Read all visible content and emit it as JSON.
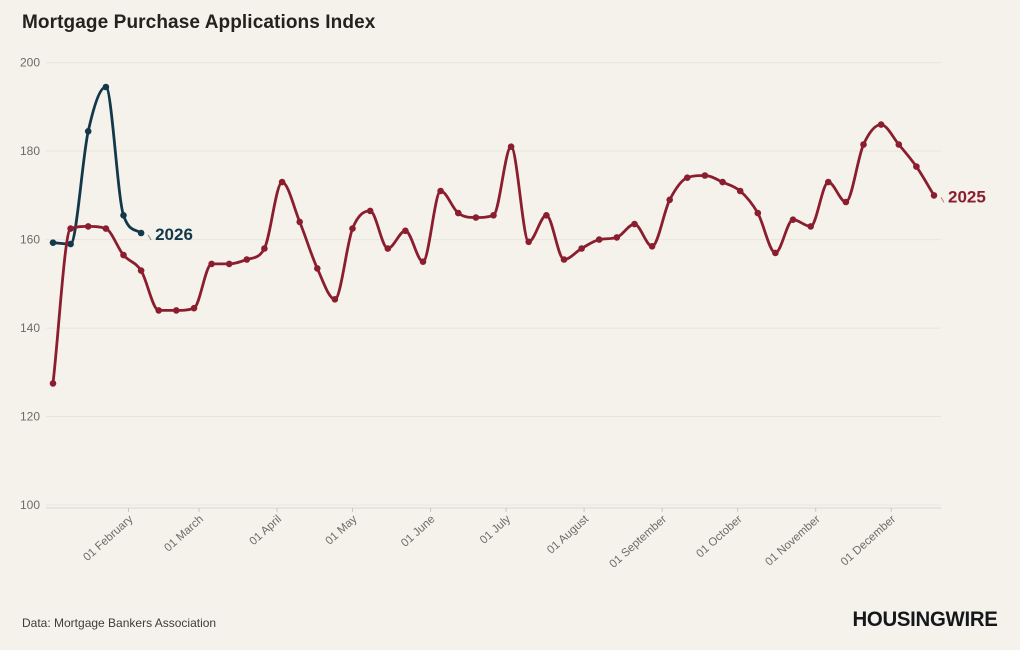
{
  "title": "Mortgage Purchase Applications Index",
  "footer": {
    "source": "Data: Mortgage Bankers Association",
    "brand": "HOUSINGWIRE"
  },
  "colors": {
    "background": "#f5f2ec",
    "series_2025": "#8b1e2e",
    "series_2026": "#13384a",
    "gridline": "#e8e5df",
    "axis_text": "#6e6b66"
  },
  "chart_data": {
    "type": "line",
    "title": "Mortgage Purchase Applications Index",
    "xlabel": "",
    "ylabel": "",
    "ylim": [
      100,
      200
    ],
    "grid": "horizontal",
    "legend_position": "inline-end-of-line-labels",
    "y_axis": {
      "ticks": [
        100,
        120,
        140,
        160,
        180,
        200
      ]
    },
    "x_axis": {
      "tick_labels": [
        "01 February",
        "01 March",
        "01 April",
        "01 May",
        "01 June",
        "01 July",
        "01 August",
        "01 September",
        "01 October",
        "01 November",
        "01 December"
      ],
      "tick_day_of_year": [
        32,
        60,
        91,
        121,
        152,
        182,
        213,
        244,
        274,
        305,
        335
      ]
    },
    "series": [
      {
        "name": "2025",
        "color": "#8b1e2e",
        "start_day_of_year": 2,
        "step_days": 7,
        "values": [
          127.5,
          162.5,
          163,
          162.5,
          156.5,
          153,
          144,
          144,
          144.5,
          154.5,
          154.5,
          155.5,
          158,
          173,
          164,
          153.5,
          146.5,
          162.5,
          166.5,
          158,
          162,
          155,
          171,
          166,
          165,
          165.5,
          181,
          159.5,
          165.5,
          155.5,
          158,
          160,
          160.5,
          163.5,
          158.5,
          169,
          174,
          174.5,
          173,
          171,
          166,
          157,
          164.5,
          163,
          173,
          168.5,
          181.5,
          186,
          181.5,
          176.5,
          170
        ]
      },
      {
        "name": "2026",
        "color": "#13384a",
        "start_day_of_year": 2,
        "step_days": 7,
        "values": [
          159.3,
          159,
          184.5,
          194.5,
          165.5,
          161.5
        ]
      }
    ]
  }
}
